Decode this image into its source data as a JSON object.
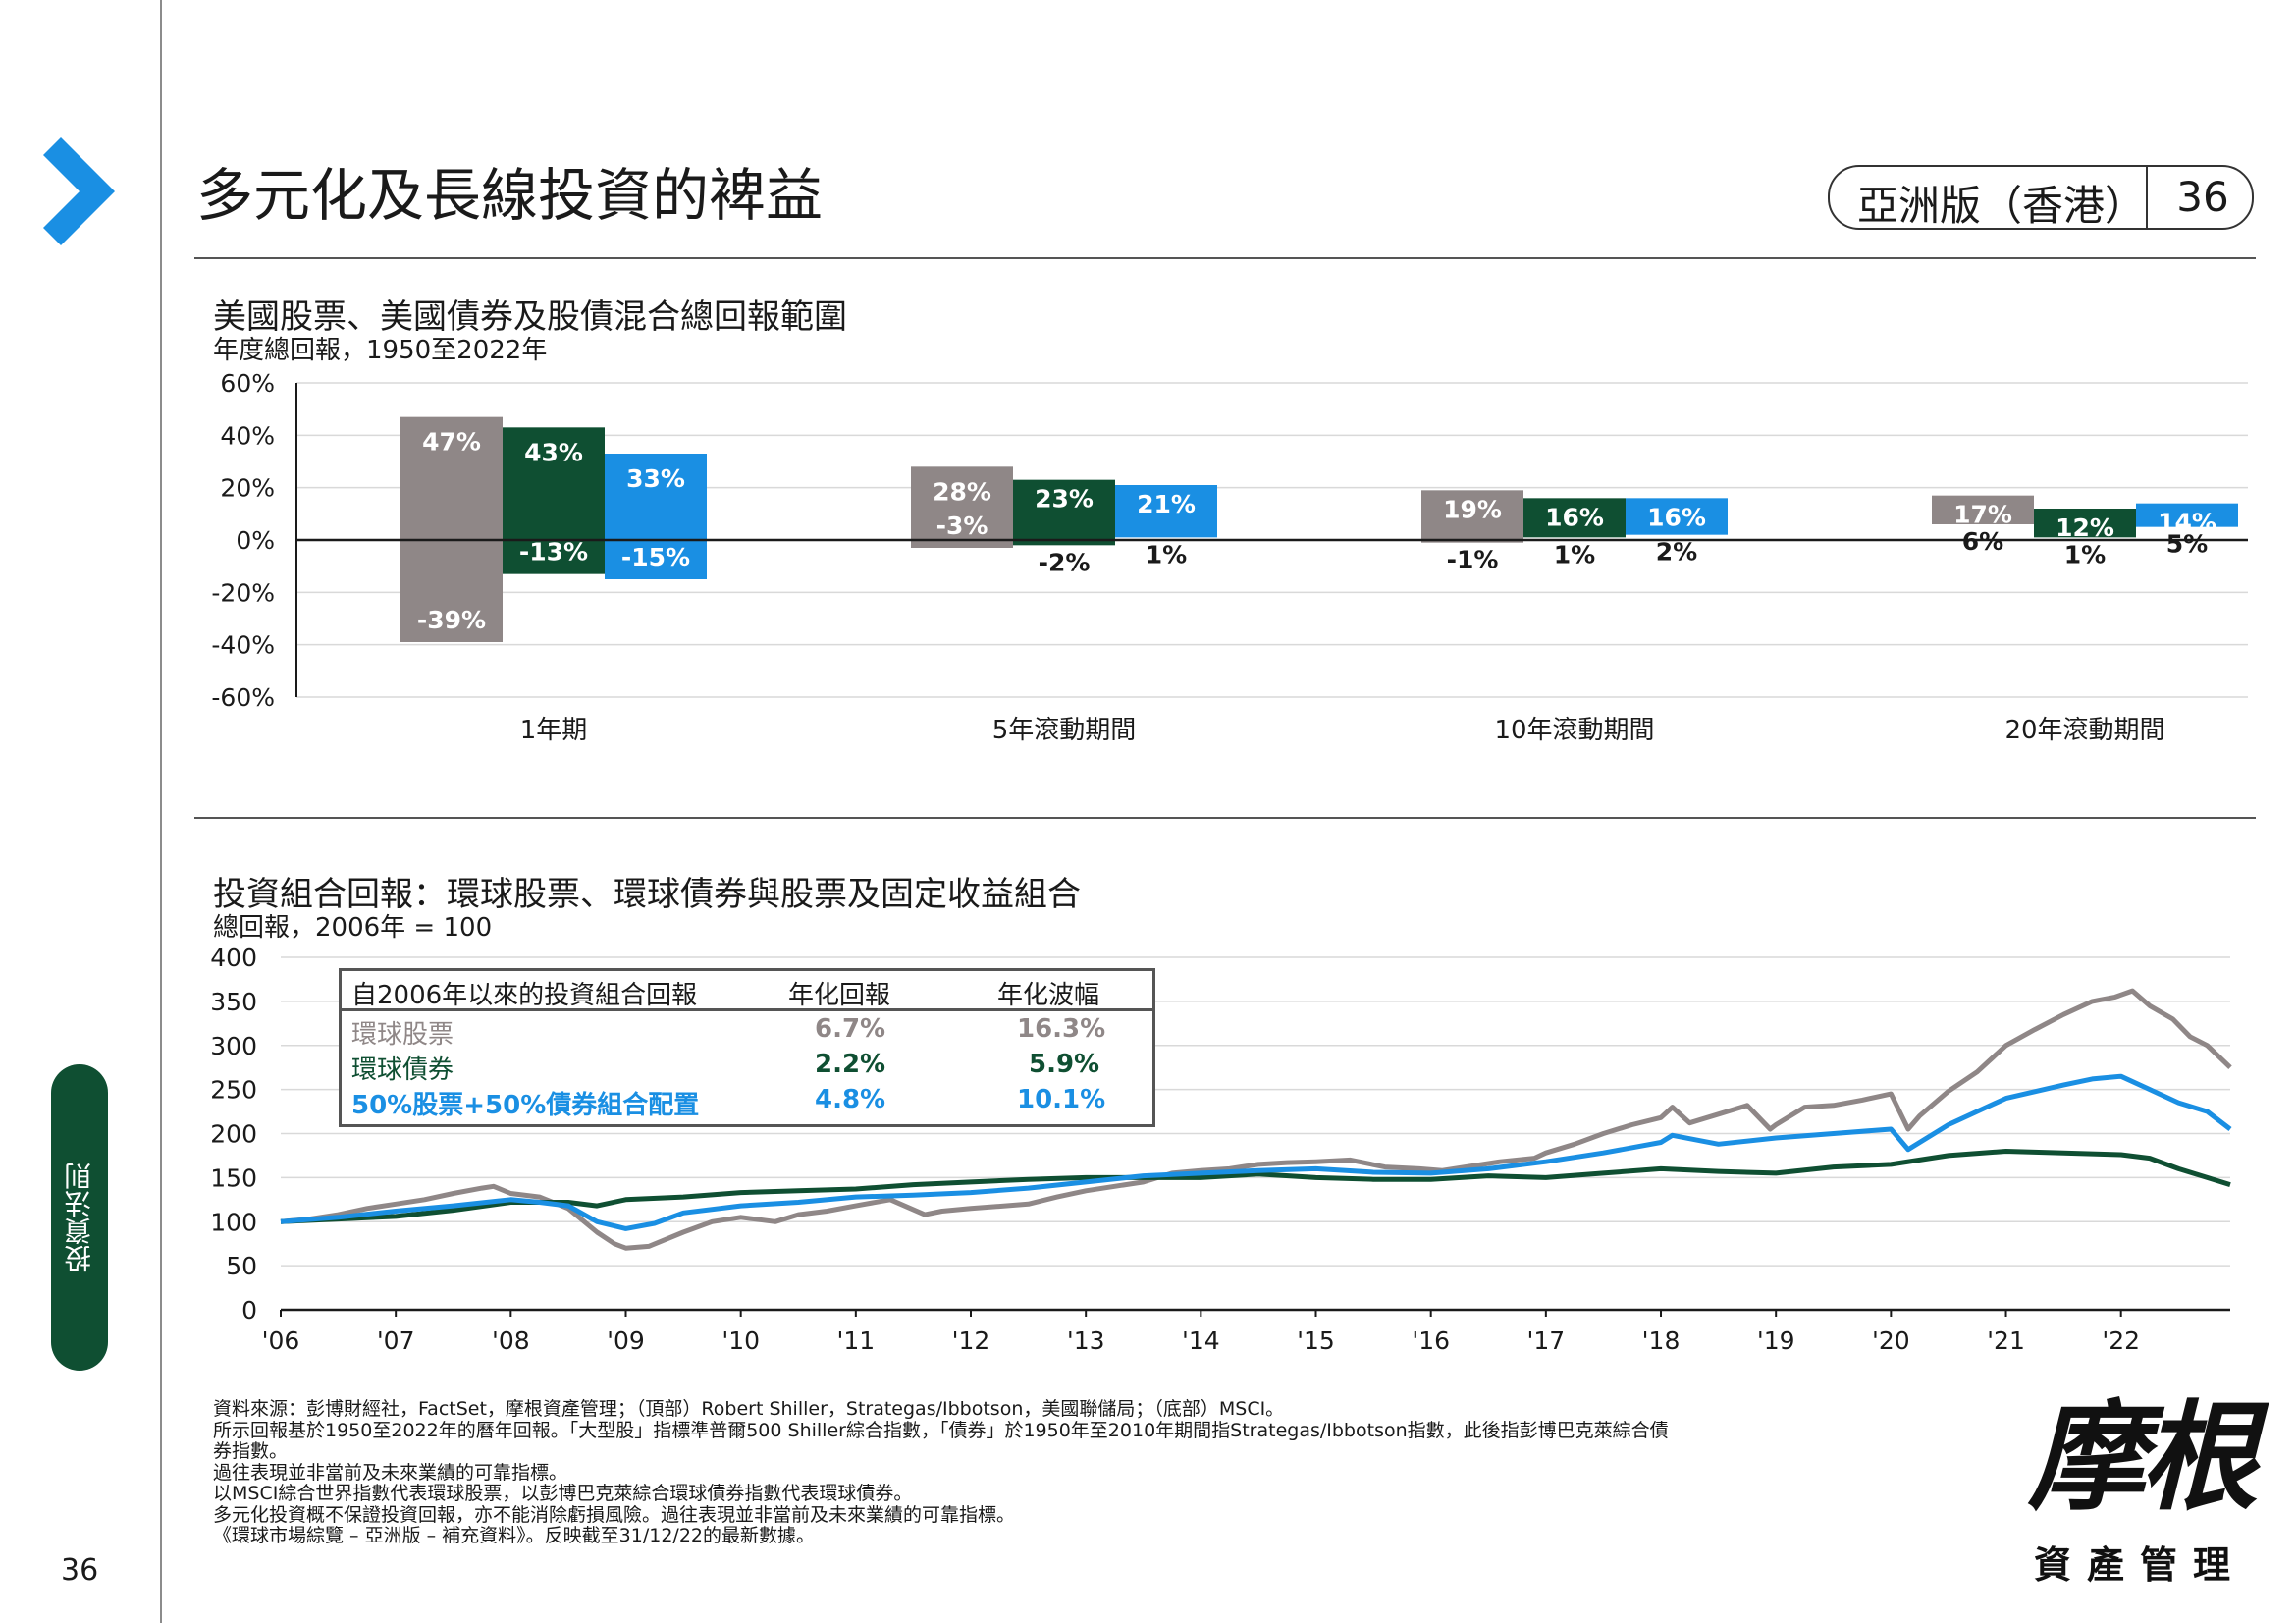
{
  "page": {
    "title": "多元化及長線投資的裨益",
    "region": "亞洲版（香港）",
    "page_number": "36",
    "side_tab": "投資法則",
    "logo": {
      "mark": "摩根",
      "sub": "資產管理"
    }
  },
  "footnotes": [
    "資料來源：彭博財經社，FactSet，摩根資產管理；（頂部）Robert Shiller，Strategas/Ibbotson，美國聯儲局；（底部）MSCI。",
    "所示回報基於1950至2022年的曆年回報。「大型股」指標準普爾500 Shiller綜合指數，「債券」於1950年至2010年期間指Strategas/Ibbotson指數，此後指彭博巴克萊綜合債",
    "券指數。",
    "過往表現並非當前及未來業績的可靠指標。",
    "以MSCI綜合世界指數代表環球股票，以彭博巴克萊綜合環球債券指數代表環球債券。",
    "多元化投資概不保證投資回報，亦不能消除虧損風險。過往表現並非當前及未來業績的可靠指標。",
    "《環球市場綜覽 – 亞洲版 – 補充資料》。反映截至31/12/22的最新數據。"
  ],
  "colors": {
    "stocks": "#8f8787",
    "bonds": "#0f4f32",
    "mix": "#1a8fe3",
    "brand_blue": "#1a8fe3",
    "brand_green": "#0f4f32"
  },
  "chart_data": [
    {
      "type": "bar",
      "title": "美國股票、美國債券及股債混合總回報範圍",
      "subtitle": "年度總回報，1950至2022年",
      "categories": [
        "1年期",
        "5年滾動期間",
        "10年滾動期間",
        "20年滾動期間"
      ],
      "yticks": [
        "60%",
        "40%",
        "20%",
        "0%",
        "-20%",
        "-40%",
        "-60%"
      ],
      "ylim": [
        -60,
        60
      ],
      "grid": true,
      "series": [
        {
          "key": "stocks",
          "max": [
            47,
            28,
            19,
            17
          ],
          "min": [
            -39,
            -3,
            -1,
            6
          ],
          "max_labels": [
            "47%",
            "28%",
            "19%",
            "17%"
          ],
          "min_labels": [
            "-39%",
            "-3%",
            "-1%",
            "6%"
          ]
        },
        {
          "key": "bonds",
          "max": [
            43,
            23,
            16,
            12
          ],
          "min": [
            -13,
            -2,
            1,
            1
          ],
          "max_labels": [
            "43%",
            "23%",
            "16%",
            "12%"
          ],
          "min_labels": [
            "-13%",
            "-2%",
            "1%",
            "1%"
          ]
        },
        {
          "key": "mix",
          "max": [
            33,
            21,
            16,
            14
          ],
          "min": [
            -15,
            1,
            2,
            5
          ],
          "max_labels": [
            "33%",
            "21%",
            "16%",
            "14%"
          ],
          "min_labels": [
            "-15%",
            "1%",
            "2%",
            "5%"
          ]
        }
      ]
    },
    {
      "type": "line",
      "title": "投資組合回報：環球股票、環球債券與股票及固定收益組合",
      "subtitle": "總回報，2006年 = 100",
      "x_tick_labels": [
        "'06",
        "'07",
        "'08",
        "'09",
        "'10",
        "'11",
        "'12",
        "'13",
        "'14",
        "'15",
        "'16",
        "'17",
        "'18",
        "'19",
        "'20",
        "'21",
        "'22"
      ],
      "x_range": [
        2006.0,
        2022.95
      ],
      "ylim": [
        0,
        400
      ],
      "yticks": [
        "400",
        "350",
        "300",
        "250",
        "200",
        "150",
        "100",
        "50",
        "0"
      ],
      "grid": true,
      "stats_table": {
        "header": [
          "自2006年以來的投資組合回報",
          "年化回報",
          "年化波幅"
        ],
        "rows": [
          {
            "key": "stocks",
            "name": "環球股票",
            "return": "6.7%",
            "vol": "16.3%"
          },
          {
            "key": "bonds",
            "name": "環球債券",
            "return": "2.2%",
            "vol": "5.9%"
          },
          {
            "key": "mix",
            "name": "50%股票+50%債券組合配置",
            "return": "4.8%",
            "vol": "10.1%"
          }
        ]
      },
      "series": [
        {
          "key": "stocks",
          "name": "環球股票",
          "x": [
            2006.0,
            2006.25,
            2006.5,
            2006.75,
            2007.0,
            2007.25,
            2007.5,
            2007.75,
            2007.85,
            2008.0,
            2008.25,
            2008.5,
            2008.75,
            2008.9,
            2009.0,
            2009.2,
            2009.5,
            2009.75,
            2010.0,
            2010.3,
            2010.5,
            2010.75,
            2011.0,
            2011.3,
            2011.6,
            2011.75,
            2012.0,
            2012.5,
            2012.75,
            2013.0,
            2013.25,
            2013.5,
            2013.75,
            2014.0,
            2014.25,
            2014.5,
            2014.75,
            2015.0,
            2015.3,
            2015.6,
            2015.9,
            2016.1,
            2016.3,
            2016.6,
            2016.9,
            2017.0,
            2017.25,
            2017.5,
            2017.75,
            2018.0,
            2018.1,
            2018.25,
            2018.5,
            2018.75,
            2018.95,
            2019.0,
            2019.25,
            2019.5,
            2019.75,
            2020.0,
            2020.15,
            2020.25,
            2020.5,
            2020.75,
            2021.0,
            2021.25,
            2021.5,
            2021.75,
            2021.95,
            2022.1,
            2022.25,
            2022.45,
            2022.6,
            2022.75,
            2022.95
          ],
          "y": [
            100,
            103,
            108,
            115,
            120,
            125,
            132,
            138,
            140,
            132,
            128,
            115,
            88,
            75,
            70,
            72,
            88,
            100,
            105,
            100,
            108,
            112,
            118,
            125,
            108,
            112,
            115,
            120,
            128,
            135,
            140,
            145,
            155,
            158,
            160,
            165,
            167,
            168,
            170,
            162,
            160,
            158,
            162,
            168,
            172,
            178,
            188,
            200,
            210,
            218,
            230,
            212,
            222,
            232,
            205,
            210,
            230,
            232,
            238,
            245,
            205,
            220,
            248,
            270,
            300,
            318,
            335,
            350,
            355,
            362,
            345,
            330,
            310,
            300,
            275
          ]
        },
        {
          "key": "bonds",
          "name": "環球債券",
          "x": [
            2006.0,
            2006.5,
            2007.0,
            2007.5,
            2008.0,
            2008.5,
            2008.75,
            2009.0,
            2009.5,
            2010.0,
            2010.5,
            2011.0,
            2011.5,
            2012.0,
            2012.5,
            2013.0,
            2013.5,
            2014.0,
            2014.5,
            2015.0,
            2015.5,
            2016.0,
            2016.5,
            2017.0,
            2017.5,
            2018.0,
            2018.5,
            2019.0,
            2019.5,
            2020.0,
            2020.25,
            2020.5,
            2021.0,
            2021.5,
            2022.0,
            2022.25,
            2022.5,
            2022.75,
            2022.95
          ],
          "y": [
            100,
            103,
            106,
            113,
            122,
            122,
            118,
            125,
            128,
            133,
            135,
            137,
            142,
            145,
            148,
            150,
            150,
            150,
            154,
            150,
            148,
            148,
            152,
            150,
            155,
            160,
            157,
            155,
            162,
            165,
            170,
            175,
            180,
            178,
            176,
            172,
            160,
            150,
            142
          ]
        },
        {
          "key": "mix",
          "name": "50%股票+50%債券組合配置",
          "x": [
            2006.0,
            2006.5,
            2007.0,
            2007.5,
            2008.0,
            2008.25,
            2008.5,
            2008.75,
            2009.0,
            2009.25,
            2009.5,
            2010.0,
            2010.5,
            2011.0,
            2011.5,
            2012.0,
            2012.5,
            2013.0,
            2013.5,
            2014.0,
            2014.5,
            2015.0,
            2015.5,
            2016.0,
            2016.5,
            2017.0,
            2017.5,
            2018.0,
            2018.1,
            2018.5,
            2019.0,
            2019.5,
            2020.0,
            2020.15,
            2020.5,
            2021.0,
            2021.5,
            2021.75,
            2022.0,
            2022.25,
            2022.5,
            2022.75,
            2022.95
          ],
          "y": [
            100,
            105,
            112,
            118,
            125,
            122,
            118,
            100,
            92,
            98,
            110,
            118,
            122,
            128,
            130,
            133,
            138,
            145,
            152,
            155,
            158,
            160,
            156,
            155,
            160,
            168,
            178,
            190,
            198,
            188,
            195,
            200,
            205,
            182,
            210,
            240,
            255,
            262,
            265,
            250,
            235,
            225,
            205
          ]
        }
      ]
    }
  ]
}
